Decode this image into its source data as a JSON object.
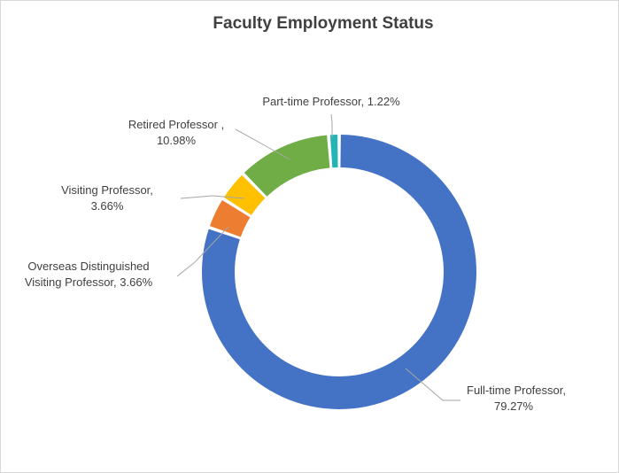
{
  "chart_data": {
    "type": "pie",
    "variant": "doughnut",
    "title": "Faculty Employment Status",
    "legend": "none",
    "slices": [
      {
        "label_lines": [
          "Full-time Professor,",
          "79.27%"
        ],
        "category": "Full-time Professor",
        "value": 79.27,
        "display": "79.27%",
        "color": "#4472C4"
      },
      {
        "label_lines": [
          "Overseas Distinguished",
          "Visiting Professor, 3.66%"
        ],
        "category": "Overseas Distinguished Visiting Professor",
        "value": 3.66,
        "display": "3.66%",
        "color": "#ED7D31"
      },
      {
        "label_lines": [
          "Visiting Professor,",
          "3.66%"
        ],
        "category": "Visiting Professor",
        "value": 3.66,
        "display": "3.66%",
        "color": "#FFC000"
      },
      {
        "label_lines": [
          "Retired Professor ,",
          "10.98%"
        ],
        "category": "Retired Professor",
        "value": 10.98,
        "display": "10.98%",
        "color": "#70AD47"
      },
      {
        "label_lines": [
          "Part-time Professor, 1.22%"
        ],
        "category": "Part-time Professor",
        "value": 1.22,
        "display": "1.22%",
        "color": "#26B5B5"
      }
    ]
  }
}
